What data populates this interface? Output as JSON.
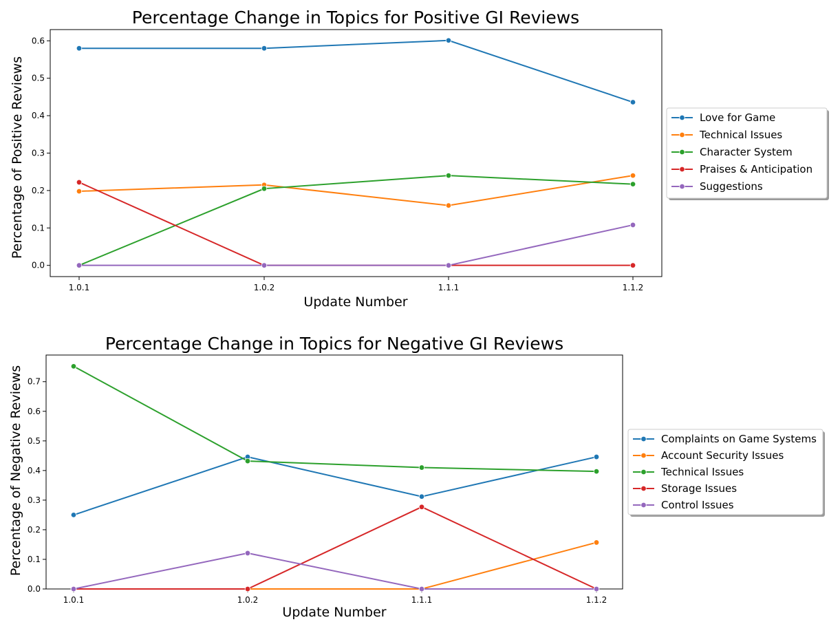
{
  "chart_data": [
    {
      "type": "line",
      "title": "Percentage Change in Topics for Positive GI Reviews",
      "xlabel": "Update Number",
      "ylabel": "Percentage of Positive Reviews",
      "categories": [
        "1.0.1",
        "1.0.2",
        "1.1.1",
        "1.1.2"
      ],
      "ylim": [
        -0.03,
        0.63
      ],
      "yticks": [
        "0.0",
        "0.1",
        "0.2",
        "0.3",
        "0.4",
        "0.5",
        "0.6"
      ],
      "legend_position": "right",
      "series": [
        {
          "name": "Love for Game",
          "color": "#1f77b4",
          "values": [
            0.58,
            0.58,
            0.601,
            0.436
          ]
        },
        {
          "name": "Technical Issues",
          "color": "#ff7f0e",
          "values": [
            0.198,
            0.215,
            0.16,
            0.24
          ]
        },
        {
          "name": "Character System",
          "color": "#2ca02c",
          "values": [
            0.0,
            0.205,
            0.24,
            0.217
          ]
        },
        {
          "name": "Praises & Anticipation",
          "color": "#d62728",
          "values": [
            0.222,
            0.0,
            0.0,
            0.0
          ]
        },
        {
          "name": "Suggestions",
          "color": "#9467bd",
          "values": [
            0.0,
            0.0,
            0.0,
            0.108
          ]
        }
      ]
    },
    {
      "type": "line",
      "title": "Percentage Change in Topics for Negative GI Reviews",
      "xlabel": "Update Number",
      "ylabel": "Percentage of Negative Reviews",
      "categories": [
        "1.0.1",
        "1.0.2",
        "1.1.1",
        "1.1.2"
      ],
      "ylim": [
        0,
        0.79
      ],
      "yticks": [
        "0.0",
        "0.1",
        "0.2",
        "0.3",
        "0.4",
        "0.5",
        "0.6",
        "0.7"
      ],
      "legend_position": "right",
      "series": [
        {
          "name": "Complaints on Game Systems",
          "color": "#1f77b4",
          "values": [
            0.25,
            0.446,
            0.312,
            0.446
          ]
        },
        {
          "name": "Account Security Issues",
          "color": "#ff7f0e",
          "values": [
            0.0,
            0.0,
            0.0,
            0.157
          ]
        },
        {
          "name": "Technical Issues",
          "color": "#2ca02c",
          "values": [
            0.752,
            0.432,
            0.41,
            0.397
          ]
        },
        {
          "name": "Storage Issues",
          "color": "#d62728",
          "values": [
            0.0,
            0.0,
            0.277,
            0.0
          ]
        },
        {
          "name": "Control Issues",
          "color": "#9467bd",
          "values": [
            0.0,
            0.121,
            0.0,
            0.0
          ]
        }
      ]
    }
  ]
}
